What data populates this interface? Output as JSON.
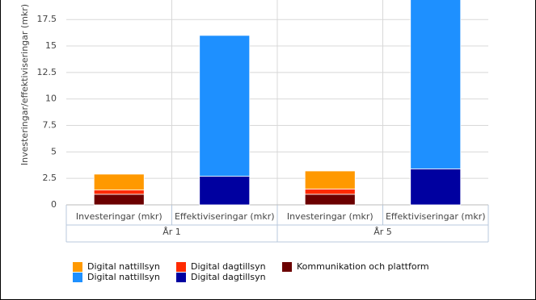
{
  "chart_data": {
    "type": "bar",
    "stacked": true,
    "y_axis_label": "Investeringar/effektiviseringar (mkr)",
    "categories": [
      "Investeringar (mkr)",
      "Effektiviseringar (mkr)",
      "Investeringar (mkr)",
      "Effektiviseringar (mkr)"
    ],
    "groups": [
      "År 1",
      "År 5"
    ],
    "series": [
      {
        "name": "Kommunikation och plattform",
        "color": "#6b0000",
        "values": [
          1.0,
          null,
          1.0,
          null
        ]
      },
      {
        "name": "Digital dagtillsyn",
        "color": "#ff2a00",
        "values": [
          0.4,
          null,
          0.5,
          null
        ]
      },
      {
        "name": "Digital dagtillsyn",
        "color": "#0000a0",
        "values": [
          null,
          2.7,
          null,
          3.4
        ]
      },
      {
        "name": "Digital nattillsyn",
        "color": "#ff9900",
        "values": [
          1.5,
          null,
          1.7,
          null
        ]
      },
      {
        "name": "Digital nattillsyn",
        "color": "#1e90ff",
        "values": [
          null,
          13.3,
          null,
          16
        ]
      }
    ],
    "ylim": [
      0,
      20
    ],
    "yticks": [
      0,
      2.5,
      5,
      7.5,
      10,
      12.5,
      15,
      17.5
    ],
    "grid": true
  }
}
